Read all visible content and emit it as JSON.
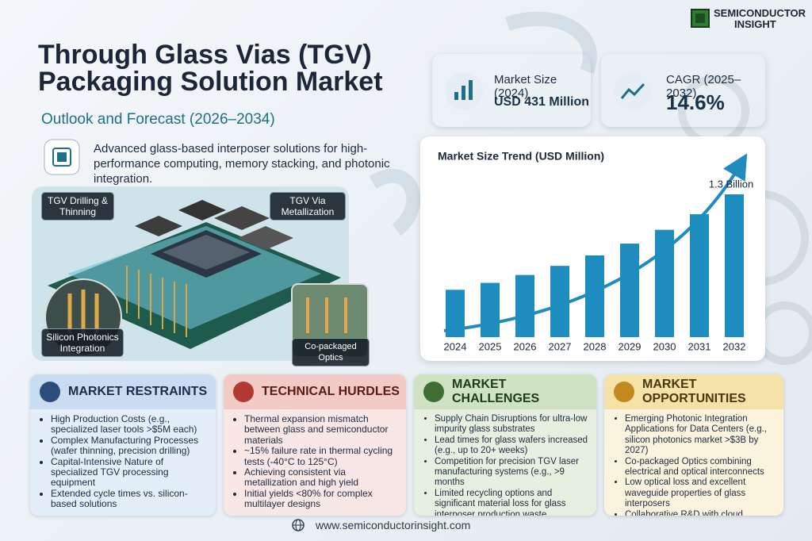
{
  "logo": {
    "line1": "SEMICONDUCTOR",
    "line2": "INSIGHT"
  },
  "header": {
    "title": "Through Glass Vias (TGV) Packaging Solution Market",
    "subtitle": "Outlook and Forecast (2026–2034)",
    "description": "Advanced glass-based interposer solutions for high-performance computing, memory stacking, and photonic integration."
  },
  "stats": [
    {
      "label": "Market Size (2024)",
      "value": "USD 431 Million"
    },
    {
      "label": "CAGR (2025–2032)",
      "value": "14.6%"
    }
  ],
  "image_labels": [
    "TGV Drilling & Thinning",
    "TGV Via Metallization",
    "Silicon Photonics Integration",
    "Co-packaged Optics"
  ],
  "chart_data": {
    "type": "bar",
    "title": "Market Size Trend (USD Million)",
    "categories": [
      "2024",
      "2025",
      "2026",
      "2027",
      "2028",
      "2029",
      "2030",
      "2031",
      "2032"
    ],
    "values": [
      431,
      494,
      566,
      649,
      744,
      852,
      977,
      1119,
      1300
    ],
    "annotation": "1.3 Billion",
    "color": "#1f8cc0"
  },
  "panels": [
    {
      "title": "MARKET RESTRAINTS",
      "items": [
        "High Production Costs (e.g., specialized laser tools >$5M each)",
        "Complex Manufacturing Processes (wafer thinning, precision drilling)",
        "Capital-Intensive Nature of specialized TGV processing equipment",
        "Extended cycle times vs. silicon-based solutions"
      ]
    },
    {
      "title": "TECHNICAL HURDLES",
      "items": [
        "Thermal expansion mismatch between glass and semiconductor materials",
        "~15% failure rate in thermal cycling tests (-40°C to 125°C)",
        "Achieving consistent via metallization and high yield",
        "Initial yields <80% for complex multilayer designs"
      ]
    },
    {
      "title": "MARKET CHALLENGES",
      "items": [
        "Supply Chain Disruptions for ultra-low impurity glass substrates",
        "Lead times for glass wafers increased (e.g., up to 20+ weeks)",
        "Competition for precision TGV laser manufacturing systems (e.g., >9 months",
        "Limited recycling options and significant material loss for glass interposer production waste"
      ]
    },
    {
      "title": "MARKET OPPORTUNITIES",
      "items": [
        "Emerging Photonic Integration Applications for Data Centers (e.g., silicon photonics market >$3B by 2027)",
        "Co-packaged Optics combining electrical and optical interconnects",
        "Low optical loss and excellent waveguide properties of glass interposers",
        "Collaborative R&D with cloud providers for next-gen optical solutions"
      ]
    }
  ],
  "footer": {
    "url": "www.semiconductorinsight.com"
  }
}
